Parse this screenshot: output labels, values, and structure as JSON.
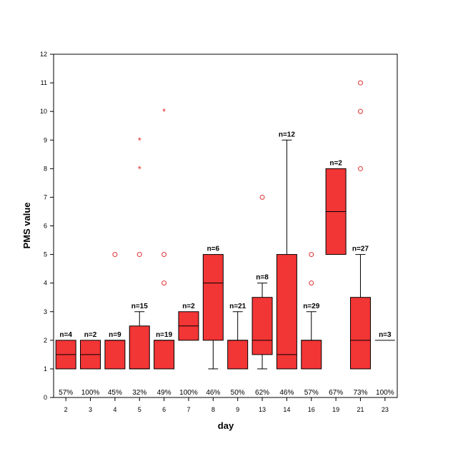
{
  "chart_data": {
    "type": "boxplot",
    "xlabel": "day",
    "ylabel": "PMS value",
    "ylim": [
      0,
      12
    ],
    "yticks": [
      0,
      1,
      2,
      3,
      4,
      5,
      6,
      7,
      8,
      9,
      10,
      11,
      12
    ],
    "grid": false,
    "colors": {
      "box_fill": "#f23535",
      "outlier": "#e03030",
      "line": "#000000"
    },
    "groups": [
      {
        "day": "2",
        "n_label": "n=4",
        "pct": "57%",
        "min": 1,
        "q1": 1,
        "median": 1.5,
        "q3": 2,
        "max": 2,
        "outliers": [],
        "extremes": []
      },
      {
        "day": "3",
        "n_label": "n=2",
        "pct": "100%",
        "min": 1,
        "q1": 1,
        "median": 1.5,
        "q3": 2,
        "max": 2,
        "outliers": [],
        "extremes": []
      },
      {
        "day": "4",
        "n_label": "n=9",
        "pct": "45%",
        "min": 1,
        "q1": 1,
        "median": 2,
        "q3": 2,
        "max": 2,
        "outliers": [
          5
        ],
        "extremes": []
      },
      {
        "day": "5",
        "n_label": "n=15",
        "pct": "32%",
        "min": 1,
        "q1": 1,
        "median": 1,
        "q3": 2.5,
        "max": 3,
        "outliers": [
          5
        ],
        "extremes": [
          8,
          9
        ]
      },
      {
        "day": "6",
        "n_label": "n=19",
        "pct": "49%",
        "min": 1,
        "q1": 1,
        "median": 2,
        "q3": 2,
        "max": 2,
        "outliers": [
          4,
          5
        ],
        "extremes": [
          10
        ]
      },
      {
        "day": "7",
        "n_label": "n=2",
        "pct": "100%",
        "min": 2,
        "q1": 2,
        "median": 2.5,
        "q3": 3,
        "max": 3,
        "outliers": [],
        "extremes": []
      },
      {
        "day": "8",
        "n_label": "n=6",
        "pct": "46%",
        "min": 1,
        "q1": 2,
        "median": 4,
        "q3": 5,
        "max": 5,
        "outliers": [],
        "extremes": []
      },
      {
        "day": "9",
        "n_label": "n=21",
        "pct": "50%",
        "min": 1,
        "q1": 1,
        "median": 2,
        "q3": 2,
        "max": 3,
        "outliers": [],
        "extremes": []
      },
      {
        "day": "13",
        "n_label": "n=8",
        "pct": "62%",
        "min": 1,
        "q1": 1.5,
        "median": 2,
        "q3": 3.5,
        "max": 4,
        "outliers": [
          7
        ],
        "extremes": []
      },
      {
        "day": "14",
        "n_label": "n=12",
        "pct": "46%",
        "min": 1,
        "q1": 1,
        "median": 1.5,
        "q3": 5,
        "max": 9,
        "outliers": [],
        "extremes": []
      },
      {
        "day": "16",
        "n_label": "n=29",
        "pct": "57%",
        "min": 1,
        "q1": 1,
        "median": 2,
        "q3": 2,
        "max": 3,
        "outliers": [
          4,
          5
        ],
        "extremes": []
      },
      {
        "day": "19",
        "n_label": "n=2",
        "pct": "67%",
        "min": 5,
        "q1": 5,
        "median": 6.5,
        "q3": 8,
        "max": 8,
        "outliers": [],
        "extremes": []
      },
      {
        "day": "21",
        "n_label": "n=27",
        "pct": "73%",
        "min": 1,
        "q1": 1,
        "median": 2,
        "q3": 3.5,
        "max": 5,
        "outliers": [
          8,
          10,
          11
        ],
        "extremes": []
      },
      {
        "day": "23",
        "n_label": "n=3",
        "pct": "100%",
        "min": 2,
        "q1": 2,
        "median": 2,
        "q3": 2,
        "max": 2,
        "outliers": [],
        "extremes": []
      }
    ]
  }
}
